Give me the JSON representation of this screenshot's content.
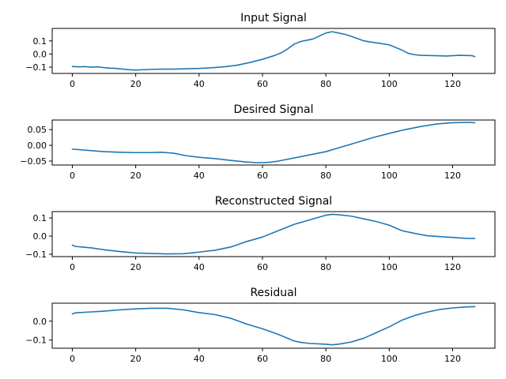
{
  "colors": {
    "line": "#1f77b4",
    "axes": "#000000",
    "background": "#ffffff"
  },
  "chart_data": [
    {
      "type": "line",
      "title": "Input Signal",
      "xlabel": "",
      "ylabel": "",
      "xlim": [
        -6.35,
        133.35
      ],
      "ylim": [
        -0.148,
        0.195
      ],
      "xticks": [
        0,
        20,
        40,
        60,
        80,
        100,
        120
      ],
      "xtick_labels": [
        "0",
        "20",
        "40",
        "60",
        "80",
        "100",
        "120"
      ],
      "yticks": [
        -0.1,
        0.0,
        0.1
      ],
      "ytick_labels": [
        "−0.1",
        "0.0",
        "0.1"
      ],
      "grid": false,
      "series": [
        {
          "x": [
            0,
            2,
            4,
            6,
            8,
            10,
            12,
            14,
            16,
            18,
            20,
            24,
            28,
            32,
            36,
            40,
            44,
            48,
            52,
            56,
            60,
            64,
            66,
            68,
            70,
            72,
            76,
            80,
            82,
            84,
            86,
            88,
            92,
            96,
            100,
            102,
            104,
            106,
            108,
            110,
            114,
            118,
            122,
            126,
            127
          ],
          "y": [
            -0.095,
            -0.098,
            -0.096,
            -0.1,
            -0.098,
            -0.104,
            -0.108,
            -0.11,
            -0.115,
            -0.12,
            -0.122,
            -0.118,
            -0.115,
            -0.115,
            -0.112,
            -0.11,
            -0.105,
            -0.097,
            -0.085,
            -0.065,
            -0.04,
            -0.01,
            0.01,
            0.04,
            0.075,
            0.095,
            0.115,
            0.16,
            0.17,
            0.16,
            0.15,
            0.135,
            0.1,
            0.085,
            0.07,
            0.05,
            0.03,
            0.005,
            -0.005,
            -0.01,
            -0.012,
            -0.015,
            -0.01,
            -0.012,
            -0.02
          ]
        }
      ]
    },
    {
      "type": "line",
      "title": "Desired Signal",
      "xlabel": "",
      "ylabel": "",
      "xlim": [
        -6.35,
        133.35
      ],
      "ylim": [
        -0.0625,
        0.0805
      ],
      "xticks": [
        0,
        20,
        40,
        60,
        80,
        100,
        120
      ],
      "xtick_labels": [
        "0",
        "20",
        "40",
        "60",
        "80",
        "100",
        "120"
      ],
      "yticks": [
        -0.05,
        0.0,
        0.05
      ],
      "ytick_labels": [
        "−0.05",
        "0.00",
        "0.05"
      ],
      "grid": false,
      "series": [
        {
          "x": [
            0,
            5,
            10,
            15,
            20,
            25,
            28,
            32,
            36,
            40,
            45,
            50,
            55,
            58,
            60,
            62,
            65,
            70,
            75,
            80,
            85,
            90,
            95,
            100,
            105,
            110,
            115,
            120,
            125,
            127
          ],
          "y": [
            -0.012,
            -0.016,
            -0.02,
            -0.022,
            -0.023,
            -0.023,
            -0.022,
            -0.025,
            -0.033,
            -0.038,
            -0.042,
            -0.048,
            -0.053,
            -0.055,
            -0.055,
            -0.054,
            -0.05,
            -0.04,
            -0.03,
            -0.02,
            -0.005,
            0.01,
            0.025,
            0.038,
            0.05,
            0.06,
            0.068,
            0.072,
            0.073,
            0.072
          ]
        }
      ]
    },
    {
      "type": "line",
      "title": "Reconstructed Signal",
      "xlabel": "",
      "ylabel": "",
      "xlim": [
        -6.35,
        133.35
      ],
      "ylim": [
        -0.113,
        0.135
      ],
      "xticks": [
        0,
        20,
        40,
        60,
        80,
        100,
        120
      ],
      "xtick_labels": [
        "0",
        "20",
        "40",
        "60",
        "80",
        "100",
        "120"
      ],
      "yticks": [
        -0.1,
        0.0,
        0.1
      ],
      "ytick_labels": [
        "−0.1",
        "0.0",
        "0.1"
      ],
      "grid": false,
      "series": [
        {
          "x": [
            0,
            1,
            3,
            6,
            10,
            15,
            20,
            25,
            30,
            35,
            38,
            40,
            45,
            50,
            55,
            60,
            65,
            70,
            75,
            80,
            82,
            84,
            88,
            92,
            96,
            100,
            104,
            108,
            112,
            116,
            120,
            124,
            127
          ],
          "y": [
            -0.05,
            -0.057,
            -0.06,
            -0.065,
            -0.075,
            -0.085,
            -0.093,
            -0.096,
            -0.098,
            -0.097,
            -0.092,
            -0.088,
            -0.078,
            -0.06,
            -0.03,
            -0.005,
            0.03,
            0.065,
            0.09,
            0.115,
            0.12,
            0.118,
            0.11,
            0.095,
            0.08,
            0.06,
            0.03,
            0.015,
            0.002,
            -0.003,
            -0.007,
            -0.012,
            -0.013
          ]
        }
      ]
    },
    {
      "type": "line",
      "title": "Residual",
      "xlabel": "",
      "ylabel": "",
      "xlim": [
        -6.35,
        133.35
      ],
      "ylim": [
        -0.143,
        0.095
      ],
      "xticks": [
        0,
        20,
        40,
        60,
        80,
        100,
        120
      ],
      "xtick_labels": [
        "0",
        "20",
        "40",
        "60",
        "80",
        "100",
        "120"
      ],
      "yticks": [
        -0.1,
        0.0
      ],
      "ytick_labels": [
        "−0.1",
        "0.0"
      ],
      "grid": false,
      "series": [
        {
          "x": [
            0,
            1,
            5,
            10,
            15,
            20,
            25,
            30,
            35,
            40,
            45,
            50,
            55,
            60,
            65,
            70,
            72,
            75,
            80,
            82,
            84,
            88,
            92,
            96,
            100,
            104,
            108,
            112,
            116,
            120,
            124,
            127
          ],
          "y": [
            0.038,
            0.044,
            0.048,
            0.053,
            0.06,
            0.065,
            0.068,
            0.068,
            0.06,
            0.045,
            0.035,
            0.015,
            -0.015,
            -0.04,
            -0.07,
            -0.105,
            -0.112,
            -0.118,
            -0.122,
            -0.125,
            -0.122,
            -0.11,
            -0.09,
            -0.06,
            -0.03,
            0.005,
            0.03,
            0.048,
            0.062,
            0.07,
            0.075,
            0.077
          ]
        }
      ]
    }
  ]
}
